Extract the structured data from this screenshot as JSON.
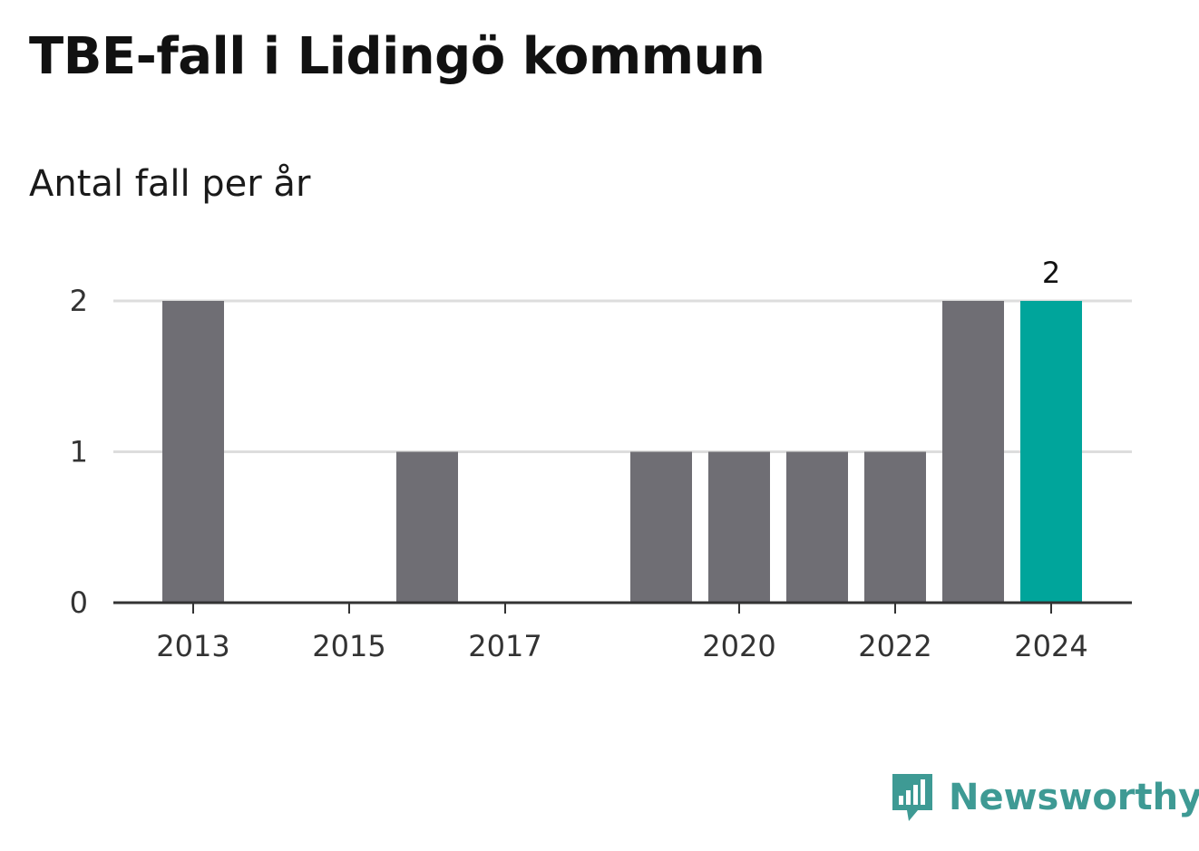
{
  "header": {
    "title": "TBE-fall i Lidingö kommun",
    "subtitle": "Antal fall per år"
  },
  "brand": {
    "name": "Newsworthy",
    "icon": "newsworthy-logo-icon",
    "color": "#3e9a94"
  },
  "colors": {
    "bar": "#6f6e74",
    "highlight": "#00a59b",
    "grid": "#dddddd",
    "axis": "#333333"
  },
  "chart_data": {
    "type": "bar",
    "categories": [
      "2013",
      "2014",
      "2015",
      "2016",
      "2017",
      "2018",
      "2019",
      "2020",
      "2021",
      "2022",
      "2023",
      "2024"
    ],
    "values": [
      2,
      0,
      0,
      1,
      0,
      0,
      1,
      1,
      1,
      1,
      2,
      2
    ],
    "highlight_category": "2024",
    "data_labels": [
      {
        "category": "2024",
        "text": "2"
      }
    ],
    "x_tick_labels": [
      "2013",
      "2015",
      "2017",
      "2020",
      "2022",
      "2024"
    ],
    "y_ticks": [
      "0",
      "1",
      "2"
    ],
    "ylim": [
      0,
      2
    ],
    "grid": true
  }
}
